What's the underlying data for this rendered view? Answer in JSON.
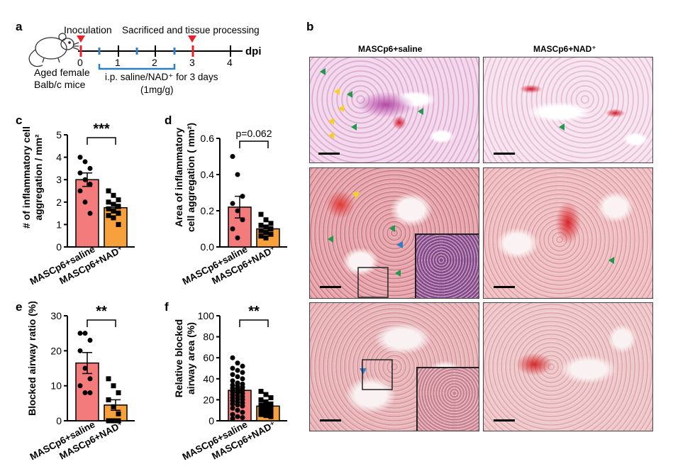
{
  "panels": {
    "a": {
      "letter": "a",
      "inoculation": "Inoculation",
      "sacrificed": "Sacrificed and tissue processing",
      "ticks": [
        "0",
        "1",
        "2",
        "3",
        "4"
      ],
      "unit": "dpi",
      "mouse_line1": "Aged female",
      "mouse_line2": "Balb/c mice",
      "treatment_line1": "i.p. saline/NAD⁺ for 3 days",
      "treatment_line2": "(1mg/g)",
      "colors": {
        "marker": "#e8202a",
        "bracket": "#2f7fc1",
        "axis": "#000000"
      }
    },
    "b": {
      "letter": "b",
      "col1": "MASCp6+saline",
      "col2": "MASCp6+NAD⁺",
      "arrow_colors": {
        "green": "#1e9a4a",
        "yellow": "#f5d31c",
        "blue": "#2f7fc1"
      }
    },
    "c": {
      "letter": "c",
      "ylabel_line1": "# of inflammatory cell",
      "ylabel_line2": "aggregation / mm²",
      "sig": "***",
      "cat1": "MASCp6+saline",
      "cat2": "MASCp6+NAD⁺"
    },
    "d": {
      "letter": "d",
      "ylabel_line1": "Area of inflammatory",
      "ylabel_line2": "cell aggregation ( mm²)",
      "pval": "p=0.062",
      "cat1": "MASCp6+saline",
      "cat2": "MASCp6+NAD⁺"
    },
    "e": {
      "letter": "e",
      "ylabel": "Blocked airway ratio (%)",
      "sig": "**",
      "cat1": "MASCp6+saline",
      "cat2": "MASCp6+NAD⁺"
    },
    "f": {
      "letter": "f",
      "ylabel_line1": "Relative blocked",
      "ylabel_line2": "airway area (%)",
      "sig": "**",
      "cat1": "MASCp6+saline",
      "cat2": "MASCp6+NAD⁺"
    }
  },
  "chart_data": [
    {
      "panel": "c",
      "type": "bar",
      "categories": [
        "MASCp6+saline",
        "MASCp6+NAD⁺"
      ],
      "values": [
        3.0,
        1.75
      ],
      "errors": [
        0.3,
        0.15
      ],
      "ylim": [
        0,
        5
      ],
      "yticks": [
        "0",
        "1",
        "2",
        "3",
        "4",
        "5"
      ],
      "points": [
        [
          4.0,
          3.8,
          3.5,
          3.3,
          3.0,
          2.8,
          2.5,
          2.0,
          1.5
        ],
        [
          2.5,
          2.3,
          2.1,
          2.0,
          1.9,
          1.8,
          1.7,
          1.6,
          1.5,
          1.4,
          1.3,
          1.0
        ]
      ],
      "colors": [
        "#f47b7b",
        "#f6a13c"
      ]
    },
    {
      "panel": "d",
      "type": "bar",
      "categories": [
        "MASCp6+saline",
        "MASCp6+NAD⁺"
      ],
      "values": [
        0.22,
        0.1
      ],
      "errors": [
        0.06,
        0.02
      ],
      "ylim": [
        0,
        0.6
      ],
      "yticks": [
        "0.0",
        "0.2",
        "0.4",
        "0.6"
      ],
      "points": [
        [
          0.5,
          0.4,
          0.28,
          0.24,
          0.2,
          0.15,
          0.1,
          0.05
        ],
        [
          0.18,
          0.15,
          0.13,
          0.12,
          0.11,
          0.1,
          0.09,
          0.08,
          0.07,
          0.06,
          0.05
        ]
      ],
      "colors": [
        "#f47b7b",
        "#f6a13c"
      ]
    },
    {
      "panel": "e",
      "type": "bar",
      "categories": [
        "MASCp6+saline",
        "MASCp6+NAD⁺"
      ],
      "values": [
        16.5,
        4.5
      ],
      "errors": [
        3.0,
        1.5
      ],
      "ylim": [
        0,
        30
      ],
      "yticks": [
        "0",
        "10",
        "20",
        "30"
      ],
      "points": [
        [
          25,
          25,
          23,
          20,
          15,
          12,
          10,
          8,
          8
        ],
        [
          12,
          10,
          8,
          6,
          4,
          2,
          0,
          0,
          0,
          0
        ]
      ],
      "colors": [
        "#f47b7b",
        "#f6a13c"
      ]
    },
    {
      "panel": "f",
      "type": "bar",
      "categories": [
        "MASCp6+saline",
        "MASCp6+NAD⁺"
      ],
      "values": [
        29,
        14
      ],
      "errors": [
        2,
        1.5
      ],
      "ylim": [
        0,
        100
      ],
      "yticks": [
        "0",
        "20",
        "40",
        "60",
        "80",
        "100"
      ],
      "points": [
        [
          60,
          55,
          52,
          50,
          48,
          46,
          44,
          42,
          40,
          38,
          36,
          35,
          34,
          33,
          32,
          31,
          30,
          29,
          28,
          27,
          26,
          25,
          24,
          23,
          22,
          21,
          20,
          19,
          18,
          17,
          16,
          15,
          14,
          12,
          10,
          8,
          6,
          4,
          3,
          2
        ],
        [
          28,
          25,
          22,
          20,
          18,
          16,
          15,
          14,
          13,
          12,
          11,
          10,
          9,
          8,
          7,
          6,
          5,
          4
        ]
      ],
      "colors": [
        "#f47b7b",
        "#f6a13c"
      ]
    }
  ]
}
